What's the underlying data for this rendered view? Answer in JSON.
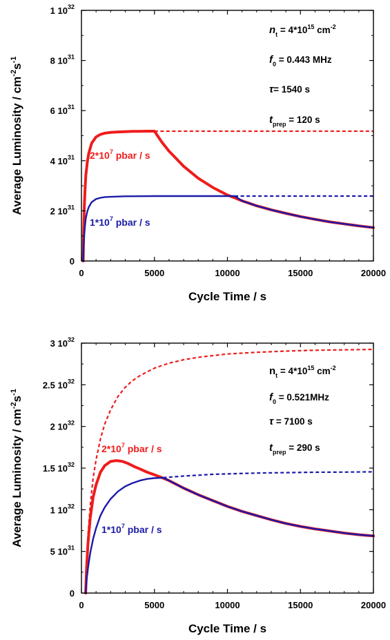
{
  "chart_data": [
    {
      "type": "line",
      "xlabel": "Cycle Time / s",
      "ylabel_main": "Average Luminosity / cm",
      "ylabel_sup": "-2",
      "ylabel_mid": "s",
      "ylabel_sup2": "-1",
      "xlim": [
        0,
        20000
      ],
      "ylim": [
        0,
        1e+32
      ],
      "x_ticks": [
        {
          "v": 0,
          "label": "0"
        },
        {
          "v": 5000,
          "label": "5000"
        },
        {
          "v": 10000,
          "label": "10000"
        },
        {
          "v": 15000,
          "label": "15000"
        },
        {
          "v": 20000,
          "label": "20000"
        }
      ],
      "y_ticks": [
        {
          "v": 0,
          "base": "0",
          "exp": ""
        },
        {
          "v": 2e+31,
          "base": "2 10",
          "exp": "31"
        },
        {
          "v": 4e+31,
          "base": "4 10",
          "exp": "31"
        },
        {
          "v": 6e+31,
          "base": "6 10",
          "exp": "31"
        },
        {
          "v": 8e+31,
          "base": "8 10",
          "exp": "31"
        },
        {
          "v": 1e+32,
          "base": "1 10",
          "exp": "32"
        }
      ],
      "annotations": [
        {
          "sym": "n",
          "sub": "t",
          "text": " = 4*10",
          "sup": "15",
          "tail": " cm",
          "sup2": "-2",
          "italic": true
        },
        {
          "sym": "f",
          "sub": "0",
          "text": " = 0.443 MHz",
          "sup": "",
          "tail": "",
          "sup2": "",
          "italic": true
        },
        {
          "sym": "τ",
          "sub": "",
          "text": "= 1540 s",
          "sup": "",
          "tail": "",
          "sup2": "",
          "italic": true
        },
        {
          "sym": "t",
          "sub": "prep",
          "text": " = 120 s",
          "sup": "",
          "tail": "",
          "sup2": "",
          "italic": true
        }
      ],
      "series_labels": [
        {
          "text": "2*10",
          "sup": "7",
          "tail": " pbar / s",
          "color": "#ee1c1c"
        },
        {
          "text": "1*10",
          "sup": "7",
          "tail": " pbar / s",
          "color": "#1a1aa8"
        }
      ],
      "series": [
        {
          "color": "#ee1c1c",
          "style": "solid",
          "x": [
            120,
            150,
            200,
            250,
            300,
            400,
            500,
            700,
            1000,
            1300,
            1600,
            2000,
            2500,
            3000,
            3500,
            4000,
            4500,
            5000,
            5500,
            6000,
            7000,
            8000,
            9000,
            10000,
            10500,
            11000,
            12000,
            13000,
            14000,
            15000,
            16000,
            17000,
            18000,
            19000,
            20000
          ],
          "y": [
            0,
            1.2e+31,
            2.2e+31,
            2.9e+31,
            3.4e+31,
            3.95e+31,
            4.3e+31,
            4.7e+31,
            4.95e+31,
            5.05e+31,
            5.1e+31,
            5.13e+31,
            5.15e+31,
            5.16e+31,
            5.17e+31,
            5.17e+31,
            5.18e+31,
            5.18e+31,
            4.75e+31,
            4.38e+31,
            3.78e+31,
            3.3e+31,
            2.93e+31,
            2.63e+31,
            2.52e+31,
            2.4e+31,
            2.2e+31,
            2.04e+31,
            1.9e+31,
            1.77e+31,
            1.66e+31,
            1.56e+31,
            1.48e+31,
            1.4e+31,
            1.33e+31
          ]
        },
        {
          "color": "#ee1c1c",
          "style": "dashed",
          "x": [
            5000,
            20000
          ],
          "y": [
            5.18e+31,
            5.18e+31
          ]
        },
        {
          "color": "#1a1aa8",
          "style": "solid",
          "x": [
            120,
            150,
            200,
            250,
            300,
            400,
            500,
            700,
            1000,
            1300,
            1600,
            2000,
            2500,
            3000,
            4000,
            5000,
            6000,
            7000,
            8000,
            9000,
            10000,
            10500,
            11000,
            12000,
            13000,
            14000,
            15000,
            16000,
            17000,
            18000,
            19000,
            20000
          ],
          "y": [
            0,
            6e+30,
            1.1e+31,
            1.45e+31,
            1.7e+31,
            1.98e+31,
            2.15e+31,
            2.35e+31,
            2.47e+31,
            2.52e+31,
            2.55e+31,
            2.56e+31,
            2.57e+31,
            2.58e+31,
            2.585e+31,
            2.59e+31,
            2.59e+31,
            2.59e+31,
            2.59e+31,
            2.59e+31,
            2.59e+31,
            2.59e+31,
            2.4e+31,
            2.2e+31,
            2.04e+31,
            1.9e+31,
            1.77e+31,
            1.66e+31,
            1.56e+31,
            1.48e+31,
            1.4e+31,
            1.33e+31
          ]
        },
        {
          "color": "#1a1aa8",
          "style": "dashed",
          "x": [
            10500,
            20000
          ],
          "y": [
            2.59e+31,
            2.59e+31
          ]
        }
      ]
    },
    {
      "type": "line",
      "xlabel": "Cycle Time / s",
      "ylabel_main": "Average Luminosity / cm",
      "ylabel_sup": "-2",
      "ylabel_mid": "s",
      "ylabel_sup2": "-1",
      "xlim": [
        0,
        20000
      ],
      "ylim": [
        0,
        3e+32
      ],
      "x_ticks": [
        {
          "v": 0,
          "label": "0"
        },
        {
          "v": 5000,
          "label": "5000"
        },
        {
          "v": 10000,
          "label": "10000"
        },
        {
          "v": 15000,
          "label": "15000"
        },
        {
          "v": 20000,
          "label": "20000"
        }
      ],
      "y_ticks": [
        {
          "v": 0,
          "base": "0",
          "exp": ""
        },
        {
          "v": 5e+31,
          "base": "5 10",
          "exp": "31"
        },
        {
          "v": 1e+32,
          "base": "1 10",
          "exp": "32"
        },
        {
          "v": 1.5e+32,
          "base": "1.5 10",
          "exp": "32"
        },
        {
          "v": 2e+32,
          "base": "2 10",
          "exp": "32"
        },
        {
          "v": 2.5e+32,
          "base": "2.5 10",
          "exp": "32"
        },
        {
          "v": 3e+32,
          "base": "3 10",
          "exp": "32"
        }
      ],
      "annotations": [
        {
          "sym": "n",
          "sub": "t",
          "text": " = 4*10",
          "sup": "15",
          "tail": " cm",
          "sup2": "-2",
          "italic": false
        },
        {
          "sym": "f",
          "sub": "0",
          "text": " = 0.521MHz",
          "sup": "",
          "tail": "",
          "sup2": "",
          "italic": true
        },
        {
          "sym": "τ",
          "sub": "",
          "text": " = 7100 s",
          "sup": "",
          "tail": "",
          "sup2": "",
          "italic": true
        },
        {
          "sym": "t",
          "sub": "prep",
          "text": " = 290 s",
          "sup": "",
          "tail": "",
          "sup2": "",
          "italic": true
        }
      ],
      "series_labels": [
        {
          "text": "2*10",
          "sup": "7",
          "tail": " pbar / s",
          "color": "#ee1c1c"
        },
        {
          "text": "1*10",
          "sup": "7",
          "tail": " pbar / s",
          "color": "#1a1aa8"
        }
      ],
      "series": [
        {
          "color": "#ee1c1c",
          "style": "dashed",
          "x": [
            290,
            350,
            450,
            600,
            800,
            1000,
            1300,
            1600,
            2000,
            2500,
            3000,
            3500,
            4000,
            5000,
            6000,
            7000,
            8000,
            9000,
            10000,
            12000,
            14000,
            16000,
            18000,
            20000
          ],
          "y": [
            0,
            3.5e+31,
            7e+31,
            1.05e+32,
            1.38e+32,
            1.6e+32,
            1.85e+32,
            2.03e+32,
            2.2e+32,
            2.36e+32,
            2.47e+32,
            2.55e+32,
            2.61e+32,
            2.7e+32,
            2.76e+32,
            2.8e+32,
            2.83e+32,
            2.85e+32,
            2.87e+32,
            2.89e+32,
            2.905e+32,
            2.915e+32,
            2.92e+32,
            2.925e+32
          ]
        },
        {
          "color": "#ee1c1c",
          "style": "solid",
          "x": [
            290,
            350,
            450,
            600,
            800,
            1000,
            1300,
            1600,
            2000,
            2400,
            2800,
            3200,
            3600,
            4000,
            4500,
            5000,
            5600,
            6000,
            7000,
            8000,
            9000,
            10000,
            11000,
            12000,
            13000,
            14000,
            15000,
            16000,
            17000,
            18000,
            19000,
            20000
          ],
          "y": [
            0,
            3e+31,
            6e+31,
            9e+31,
            1.15e+32,
            1.3e+32,
            1.45e+32,
            1.53e+32,
            1.58e+32,
            1.59e+32,
            1.58e+32,
            1.555e+32,
            1.52e+32,
            1.49e+32,
            1.45e+32,
            1.42e+32,
            1.38e+32,
            1.35e+32,
            1.26e+32,
            1.18e+32,
            1.11e+32,
            1.04e+32,
            9.8e+31,
            9.3e+31,
            8.8e+31,
            8.35e+31,
            8e+31,
            7.7e+31,
            7.45e+31,
            7.2e+31,
            7e+31,
            6.85e+31
          ]
        },
        {
          "color": "#1a1aa8",
          "style": "solid",
          "x": [
            290,
            350,
            450,
            600,
            800,
            1000,
            1300,
            1600,
            2000,
            2500,
            3000,
            3500,
            4000,
            4500,
            5000,
            5600,
            6000,
            7000,
            8000,
            9000,
            10000,
            11000,
            12000,
            13000,
            14000,
            15000,
            16000,
            17000,
            18000,
            19000,
            20000
          ],
          "y": [
            0,
            1.5e+31,
            3e+31,
            4.8e+31,
            6.5e+31,
            7.8e+31,
            9.3e+31,
            1.03e+32,
            1.13e+32,
            1.22e+32,
            1.28e+32,
            1.32e+32,
            1.35e+32,
            1.37e+32,
            1.38e+32,
            1.385e+32,
            1.35e+32,
            1.26e+32,
            1.18e+32,
            1.11e+32,
            1.04e+32,
            9.8e+31,
            9.3e+31,
            8.8e+31,
            8.35e+31,
            8e+31,
            7.7e+31,
            7.45e+31,
            7.2e+31,
            7e+31,
            6.85e+31
          ]
        },
        {
          "color": "#1a1aa8",
          "style": "dashed",
          "x": [
            5600,
            7000,
            8000,
            9000,
            10000,
            12000,
            14000,
            16000,
            18000,
            20000
          ],
          "y": [
            1.385e+32,
            1.405e+32,
            1.415e+32,
            1.425e+32,
            1.43e+32,
            1.44e+32,
            1.445e+32,
            1.45e+32,
            1.452e+32,
            1.455e+32
          ]
        }
      ]
    }
  ]
}
